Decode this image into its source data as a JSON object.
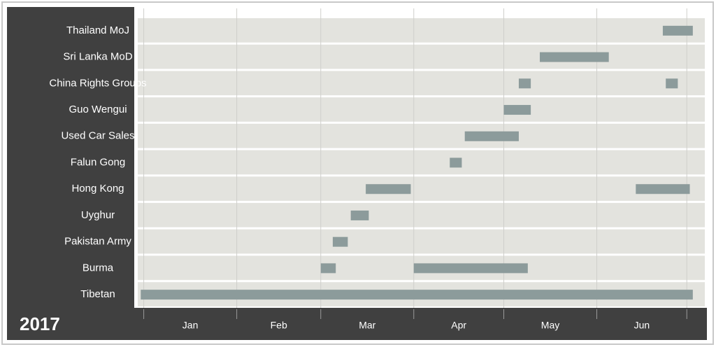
{
  "chart_data": {
    "type": "timeline",
    "title": "2017",
    "xlim": [
      -2,
      187
    ],
    "xgrid": [
      0,
      31,
      59,
      90,
      120,
      151,
      181
    ],
    "xticks": [
      {
        "value": 15.5,
        "label": "Jan"
      },
      {
        "value": 45,
        "label": "Feb"
      },
      {
        "value": 74.5,
        "label": "Mar"
      },
      {
        "value": 105,
        "label": "Apr"
      },
      {
        "value": 135.5,
        "label": "May"
      },
      {
        "value": 166,
        "label": "Jun"
      }
    ],
    "color": "#8c9b9b",
    "rows": [
      {
        "name": "Thailand MoJ",
        "spans": [
          [
            173,
            183
          ]
        ]
      },
      {
        "name": "Sri Lanka MoD",
        "spans": [
          [
            132,
            155
          ]
        ]
      },
      {
        "name": "China Rights Groups",
        "spans": [
          [
            125,
            129
          ],
          [
            174,
            178
          ]
        ]
      },
      {
        "name": "Guo Wengui",
        "spans": [
          [
            120,
            129
          ]
        ]
      },
      {
        "name": "Used Car Sales",
        "spans": [
          [
            107,
            125
          ]
        ]
      },
      {
        "name": "Falun Gong",
        "spans": [
          [
            102,
            106
          ]
        ]
      },
      {
        "name": "Hong Kong",
        "spans": [
          [
            74,
            89
          ],
          [
            164,
            182
          ]
        ]
      },
      {
        "name": "Uyghur",
        "spans": [
          [
            69,
            75
          ]
        ]
      },
      {
        "name": "Pakistan Army",
        "spans": [
          [
            63,
            68
          ]
        ]
      },
      {
        "name": "Burma",
        "spans": [
          [
            59,
            64
          ],
          [
            90,
            128
          ]
        ]
      },
      {
        "name": "Tibetan",
        "spans": [
          [
            -1,
            183
          ]
        ]
      }
    ]
  }
}
